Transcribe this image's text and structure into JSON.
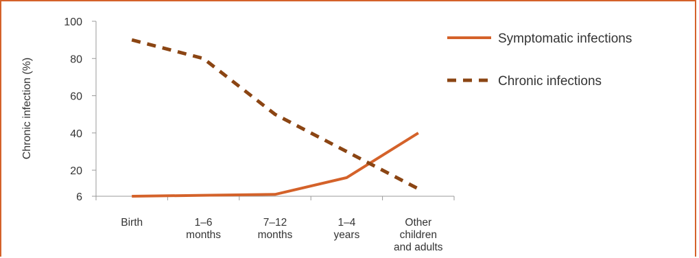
{
  "chart_data": {
    "type": "line",
    "title": "",
    "xlabel": "",
    "ylabel": "Chronic infection (%)",
    "ylim": [
      6,
      100
    ],
    "yticks": [
      6,
      20,
      40,
      60,
      80,
      100
    ],
    "grid": false,
    "legend_position": "right",
    "categories": [
      [
        "Birth"
      ],
      [
        "1–6",
        "months"
      ],
      [
        "7–12",
        "months"
      ],
      [
        "1–4",
        "years"
      ],
      [
        "Other",
        "children",
        "and adults"
      ]
    ],
    "series": [
      {
        "name": "Symptomatic infections",
        "values": [
          6,
          6.5,
          7,
          16,
          40
        ],
        "color": "#d4622a",
        "style": "solid"
      },
      {
        "name": "Chronic infections",
        "values": [
          90,
          80,
          50,
          30,
          10
        ],
        "color": "#8b4513",
        "style": "dashed"
      }
    ]
  }
}
